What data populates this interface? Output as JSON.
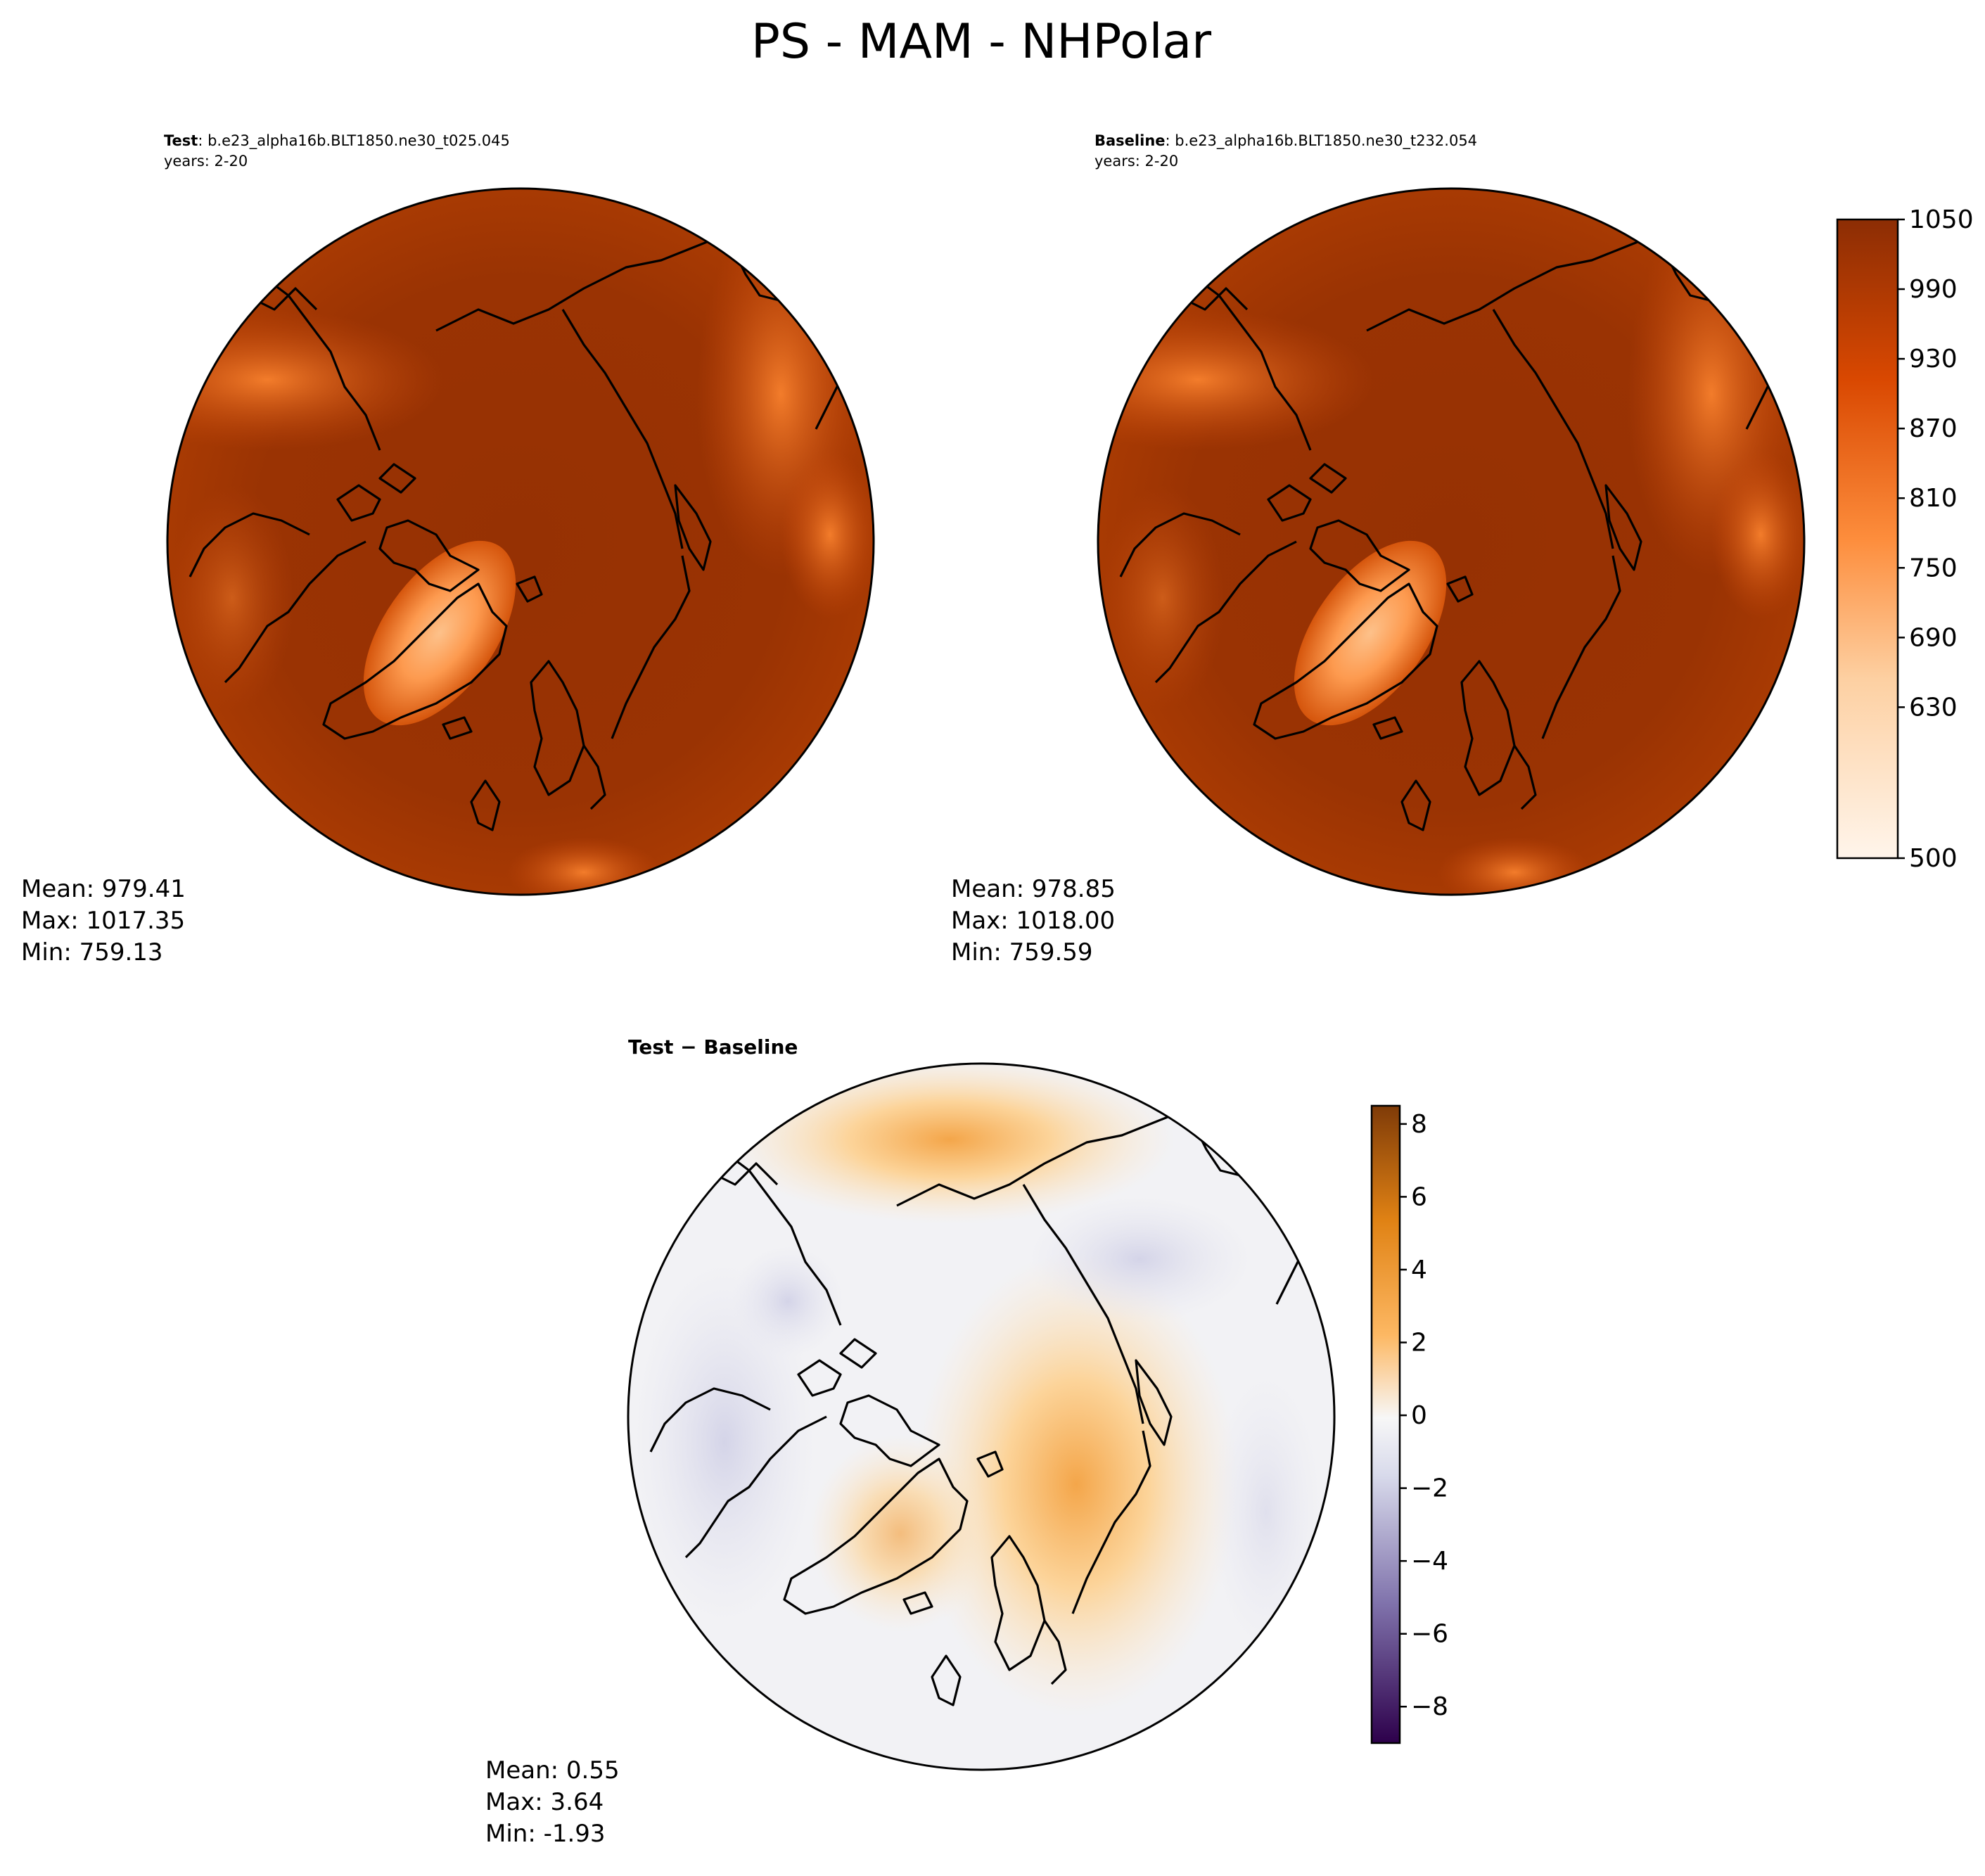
{
  "figure_title": "PS - MAM - NHPolar",
  "panels": [
    {
      "id": "test",
      "label_bold": "Test",
      "label_rest": ": b.e23_alpha16b.BLT1850.ne30_t025.045",
      "years": "years: 2-20",
      "stats": [
        "Mean: 979.41",
        "Max: 1017.35",
        "Min: 759.13"
      ]
    },
    {
      "id": "baseline",
      "label_bold": "Baseline",
      "label_rest": ": b.e23_alpha16b.BLT1850.ne30_t232.054",
      "years": "years: 2-20",
      "stats": [
        "Mean: 978.85",
        "Max: 1018.00",
        "Min: 759.59"
      ]
    },
    {
      "id": "diff",
      "label_bold": "Test − Baseline",
      "stats": [
        "Mean:  0.55",
        "Max:  3.64",
        "Min: -1.93"
      ]
    }
  ],
  "colorbars": {
    "abs": {
      "min": 500,
      "max": 1050,
      "ticks": [
        "500",
        "630",
        "690",
        "750",
        "810",
        "870",
        "930",
        "990",
        "1050"
      ],
      "colors": [
        "#fff5eb",
        "#fdd0a2",
        "#fd8d3c",
        "#d94801",
        "#8c2d04"
      ]
    },
    "diff": {
      "min": -9,
      "max": 8.5,
      "ticks": [
        "−8",
        "−6",
        "−4",
        "−2",
        "0",
        "2",
        "4",
        "6",
        "8"
      ],
      "colors": [
        "#2d004b",
        "#8073ac",
        "#d8daeb",
        "#f7f7f7",
        "#fdb863",
        "#e08214",
        "#7f3b08"
      ]
    }
  }
}
